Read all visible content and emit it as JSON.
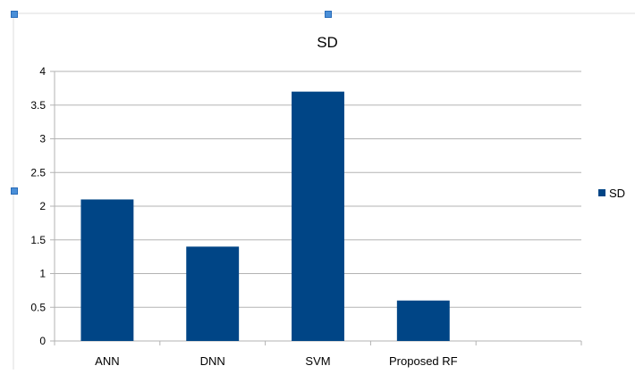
{
  "chart_data": {
    "type": "bar",
    "title": "SD",
    "categories": [
      "ANN",
      "DNN",
      "SVM",
      "Proposed RF",
      ""
    ],
    "series": [
      {
        "name": "SD",
        "values": [
          2.1,
          1.4,
          3.7,
          0.6,
          null
        ],
        "color": "#004586"
      }
    ],
    "ylim": [
      0,
      4
    ],
    "yticks": [
      0,
      0.5,
      1,
      1.5,
      2,
      2.5,
      3,
      3.5,
      4
    ],
    "grid": true,
    "legend": "right"
  }
}
